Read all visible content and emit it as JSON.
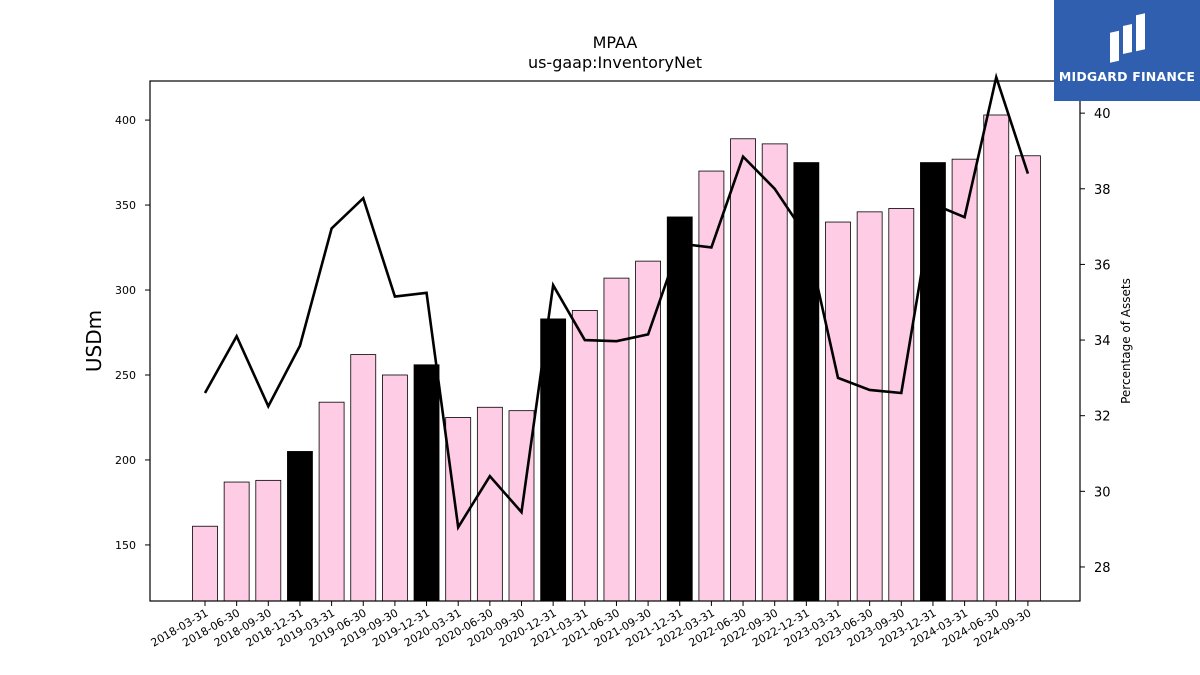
{
  "chart_data": {
    "type": "bar",
    "title": "MPAA",
    "subtitle": "us-gaap:InventoryNet",
    "ylabel": "USDm",
    "y2label": "Percentage of Assets",
    "ylim": [
      117,
      423
    ],
    "y2lim": [
      27.1,
      40.85
    ],
    "yticks": [
      150,
      200,
      250,
      300,
      350,
      400
    ],
    "y2ticks": [
      28,
      30,
      32,
      34,
      36,
      38,
      40
    ],
    "categories": [
      "2018-03-31",
      "2018-06-30",
      "2018-09-30",
      "2018-12-31",
      "2019-03-31",
      "2019-06-30",
      "2019-09-30",
      "2019-12-31",
      "2020-03-31",
      "2020-06-30",
      "2020-09-30",
      "2020-12-31",
      "2021-03-31",
      "2021-06-30",
      "2021-09-30",
      "2021-12-31",
      "2022-03-31",
      "2022-06-30",
      "2022-09-30",
      "2022-12-31",
      "2023-03-31",
      "2023-06-30",
      "2023-09-30",
      "2023-12-31",
      "2024-03-31",
      "2024-06-30",
      "2024-09-30"
    ],
    "series": [
      {
        "type": "bar",
        "values": [
          161,
          187,
          188,
          205,
          234,
          262,
          250,
          256,
          225,
          231,
          229,
          283,
          288,
          307,
          317,
          343,
          370,
          389,
          386,
          375,
          340,
          346,
          348,
          375,
          377,
          403,
          379
        ],
        "colors": [
          "#ffcce6",
          "#ffcce6",
          "#ffcce6",
          "#000000",
          "#ffcce6",
          "#ffcce6",
          "#ffcce6",
          "#000000",
          "#ffcce6",
          "#ffcce6",
          "#ffcce6",
          "#000000",
          "#ffcce6",
          "#ffcce6",
          "#ffcce6",
          "#000000",
          "#ffcce6",
          "#ffcce6",
          "#ffcce6",
          "#000000",
          "#ffcce6",
          "#ffcce6",
          "#ffcce6",
          "#000000",
          "#ffcce6",
          "#ffcce6",
          "#ffcce6"
        ]
      },
      {
        "type": "line",
        "axis": "secondary",
        "color": "#000000",
        "values": [
          32.6,
          34.1,
          32.25,
          33.85,
          36.95,
          37.75,
          35.15,
          35.25,
          29.05,
          30.4,
          29.45,
          35.45,
          34.0,
          33.97,
          34.15,
          36.55,
          36.45,
          38.85,
          38.0,
          36.75,
          33.0,
          32.68,
          32.6,
          37.6,
          37.25,
          40.95,
          38.4
        ]
      }
    ],
    "grid": false,
    "bar_highlight_color": "#000000",
    "bar_color": "#ffcce6"
  },
  "logo": {
    "text": "MIDGARD FINANCE",
    "background": "#2f5fae"
  }
}
